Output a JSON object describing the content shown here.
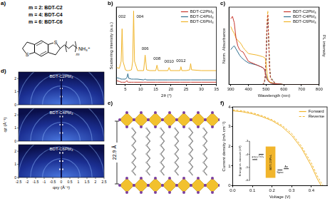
{
  "panel_labels": [
    "a)",
    "b)",
    "c)",
    "d)",
    "e)",
    "f)"
  ],
  "molecule": {
    "labels": [
      "m = 2: BDT-C2",
      "m = 4: BDT-C4",
      "m = 6: BDT-C6"
    ],
    "atoms": [
      "S",
      "S"
    ],
    "group": "NH₃⁺",
    "index": "m"
  },
  "chart_data": [
    {
      "type": "line",
      "xlabel": "2θ (°)",
      "ylabel": "Scattering intensity (a.u.)",
      "x": [
        2,
        3,
        3.6,
        3.9,
        4.2,
        5,
        5.5,
        5.8,
        6.1,
        7,
        7.4,
        7.7,
        8,
        9,
        11,
        11.5,
        12,
        13,
        15,
        15.4,
        15.8,
        17,
        19,
        19.4,
        19.8,
        21,
        23,
        23.3,
        23.6,
        25,
        26.2,
        26.5,
        26.8,
        30,
        35
      ],
      "series": [
        {
          "name": "BDT-C2PbI₄",
          "color": "#c8372d",
          "values": [
            0.05,
            0.04,
            0.03,
            0.03,
            0.03,
            0.03,
            0.05,
            0.03,
            0.03,
            0.03,
            0.03,
            0.03,
            0.03,
            0.03,
            0.03,
            0.03,
            0.03,
            0.03,
            0.03,
            0.03,
            0.03,
            0.03,
            0.03,
            0.03,
            0.03,
            0.03,
            0.03,
            0.03,
            0.03,
            0.03,
            0.03,
            0.03,
            0.03,
            0.03,
            0.03
          ]
        },
        {
          "name": "BDT-C4PbI₄",
          "color": "#2f6f8f",
          "values": [
            0.09,
            0.08,
            0.07,
            0.07,
            0.07,
            0.07,
            0.09,
            0.14,
            0.08,
            0.07,
            0.07,
            0.07,
            0.07,
            0.07,
            0.06,
            0.07,
            0.06,
            0.06,
            0.06,
            0.06,
            0.06,
            0.06,
            0.06,
            0.06,
            0.06,
            0.06,
            0.06,
            0.06,
            0.06,
            0.06,
            0.06,
            0.06,
            0.06,
            0.06,
            0.06
          ]
        },
        {
          "name": "BDT-C6PbI₄",
          "color": "#f0b429",
          "values": [
            0.22,
            0.21,
            0.3,
            0.72,
            0.3,
            0.19,
            0.18,
            0.18,
            0.18,
            0.19,
            0.3,
            0.95,
            0.3,
            0.18,
            0.18,
            0.38,
            0.19,
            0.18,
            0.18,
            0.25,
            0.18,
            0.18,
            0.18,
            0.22,
            0.18,
            0.18,
            0.18,
            0.23,
            0.18,
            0.18,
            0.19,
            0.27,
            0.19,
            0.18,
            0.18
          ]
        }
      ],
      "xlim": [
        2,
        35
      ],
      "xticks": [
        5,
        10,
        15,
        20,
        25,
        30,
        35
      ],
      "ylim": [
        0,
        1
      ],
      "tick_labels": "x",
      "grid": false,
      "legend": "top-right",
      "annotations": [
        {
          "x": 3.9,
          "y": 0.88,
          "text": "002"
        },
        {
          "x": 9.8,
          "y": 0.88,
          "text": "004"
        },
        {
          "x": 11.5,
          "y": 0.46,
          "text": "006"
        },
        {
          "x": 15.4,
          "y": 0.33,
          "text": "008"
        },
        {
          "x": 19.4,
          "y": 0.3,
          "text": "0010"
        },
        {
          "x": 23.3,
          "y": 0.31,
          "text": "0012"
        }
      ]
    },
    {
      "type": "line",
      "xlabel": "Wavelength (nm)",
      "ylabel": "Norm. Absorbance",
      "y2label": "PL intensity",
      "x": [
        300,
        310,
        320,
        330,
        340,
        350,
        360,
        370,
        380,
        400,
        450,
        480,
        490,
        495,
        500,
        505,
        510,
        515,
        520,
        525,
        550,
        560,
        600,
        700,
        800
      ],
      "series": [
        {
          "name": "BDT-C2PbI₄",
          "color": "#c8372d",
          "values": [
            0.85,
            0.88,
            0.8,
            0.6,
            0.5,
            0.45,
            0.43,
            0.42,
            0.38,
            0.3,
            0.25,
            0.22,
            0.2,
            0.16,
            0.1,
            0.07,
            0.05,
            0.04,
            0.03,
            0.02,
            0.01,
            0.01,
            0,
            0,
            0
          ]
        },
        {
          "name": "BDT-C4PbI₄",
          "color": "#2f6f8f",
          "values": [
            0.45,
            0.48,
            0.5,
            0.46,
            0.42,
            0.38,
            0.35,
            0.33,
            0.31,
            0.28,
            0.25,
            0.22,
            0.2,
            0.17,
            0.12,
            0.08,
            0.05,
            0.04,
            0.03,
            0.02,
            0.01,
            0.01,
            0,
            0,
            0
          ]
        },
        {
          "name": "BDT-C6PbI₄",
          "color": "#f0b429",
          "values": [
            0.75,
            0.7,
            0.66,
            0.6,
            0.57,
            0.55,
            0.52,
            0.48,
            0.45,
            0.4,
            0.38,
            0.36,
            0.35,
            0.34,
            0.28,
            0.15,
            0.08,
            0.05,
            0.04,
            0.03,
            0.01,
            0.01,
            0,
            0,
            0
          ]
        },
        {
          "color": "#c8372d",
          "axis": "y2",
          "line_style": "dashed",
          "values": [
            null,
            null,
            null,
            null,
            null,
            null,
            null,
            null,
            null,
            null,
            null,
            0,
            0.03,
            0.12,
            0.4,
            0.8,
            0.95,
            0.55,
            0.22,
            0.08,
            0.02,
            0.01,
            0,
            null,
            null
          ]
        },
        {
          "color": "#2f6f8f",
          "axis": "y2",
          "line_style": "dashed",
          "values": [
            null,
            null,
            null,
            null,
            null,
            null,
            null,
            null,
            null,
            null,
            null,
            0,
            0.02,
            0.08,
            0.3,
            0.7,
            0.9,
            0.6,
            0.25,
            0.1,
            0.02,
            0.01,
            0,
            null,
            null
          ]
        },
        {
          "color": "#f0b429",
          "axis": "y2",
          "line_style": "dashed",
          "values": [
            null,
            null,
            null,
            null,
            null,
            null,
            null,
            null,
            null,
            null,
            null,
            0,
            0.02,
            0.1,
            0.35,
            0.85,
            1.0,
            0.6,
            0.25,
            0.1,
            0.02,
            0.01,
            0,
            null,
            null
          ]
        }
      ],
      "xlim": [
        290,
        800
      ],
      "xticks": [
        300,
        400,
        500,
        600,
        700,
        800
      ],
      "ylim": [
        0,
        1
      ],
      "y2lim": [
        0,
        1.05
      ],
      "tick_labels": "x",
      "grid": false,
      "legend": "top-right"
    },
    {
      "type": "line",
      "xlabel": "Voltage (V)",
      "ylabel": "Current density (mA cm⁻²)",
      "x": [
        0,
        0.05,
        0.1,
        0.15,
        0.2,
        0.25,
        0.3,
        0.35,
        0.4,
        0.43,
        0.45,
        0.46
      ],
      "series": [
        {
          "name": "Forward",
          "color": "#f0b429",
          "line_style": "solid",
          "values": [
            3.8,
            3.75,
            3.65,
            3.5,
            3.3,
            3.0,
            2.55,
            1.9,
            1.0,
            0.35,
            0,
            null
          ]
        },
        {
          "name": "Reverse",
          "color": "#f0b429",
          "line_style": "dashed",
          "values": [
            3.85,
            3.8,
            3.7,
            3.55,
            3.35,
            3.07,
            2.65,
            2.0,
            1.15,
            0.5,
            0.15,
            0
          ]
        }
      ],
      "xlim": [
        0,
        0.48
      ],
      "xticks": [
        {
          "value": 0,
          "label": "0.0"
        },
        0.1,
        0.2,
        0.3,
        0.4
      ],
      "ylim": [
        0,
        4
      ],
      "yticks": [
        0,
        1,
        2,
        3,
        4
      ],
      "grid": false,
      "legend": "top-right",
      "inset": {
        "ylabel": "Energy vs. vacuum (eV)",
        "ylim": [
          -6,
          -3
        ],
        "yticks": [
          -6,
          -5,
          -4,
          -3
        ],
        "levels": [
          {
            "label": "FTO",
            "value": -4.4
          },
          {
            "label": "TiO₂",
            "value": -4.0
          },
          {
            "label": "BDT-C6PbI₄",
            "top": -3.4,
            "bottom": -5.8
          },
          {
            "label": "Spiro",
            "value": -5.2
          },
          {
            "label": "Au",
            "value": -5.1
          }
        ]
      }
    }
  ],
  "giwaxs": {
    "images": [
      "BDT-C2PbI₄",
      "BDT-C4PbI₄",
      "BDT-C6PbI₄"
    ],
    "xlabel": "qxy (Å⁻¹)",
    "ylabel": "qz (Å⁻¹)",
    "xlim": [
      -2.5,
      2.5
    ],
    "ylim": [
      0,
      2.5
    ],
    "xticks": [
      -2.5,
      -2,
      -1.5,
      -1,
      -0.5,
      0,
      0.5,
      1,
      1.5,
      2,
      2.5
    ],
    "yticks": [
      0,
      1,
      2
    ]
  },
  "structure": {
    "spacing_label": "22.9 Å"
  }
}
